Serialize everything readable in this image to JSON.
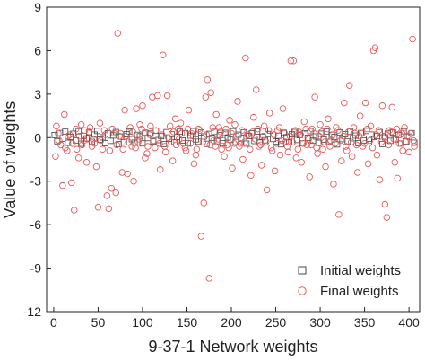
{
  "chart_data": {
    "type": "scatter",
    "xlabel": "9-37-1 Network weights",
    "ylabel": "Value of weights",
    "xlim": [
      -8,
      412
    ],
    "ylim": [
      -12,
      9
    ],
    "xticks": [
      0,
      50,
      100,
      150,
      200,
      250,
      300,
      350,
      400
    ],
    "yticks": [
      9,
      6,
      3,
      0,
      -3,
      -6,
      -9,
      -12
    ],
    "legend_position": "bottom-right",
    "grid": false,
    "series": [
      {
        "name": "Initial weights",
        "marker": "square",
        "color": "#444444",
        "x_start": 1,
        "x_step": 3,
        "values": [
          0.18,
          -0.25,
          0.32,
          -0.08,
          0.41,
          -0.36,
          0.05,
          0.27,
          -0.19,
          0.44,
          -0.42,
          0.12,
          -0.05,
          0.36,
          -0.29,
          0.21,
          0.46,
          -0.14,
          0.02,
          -0.38,
          0.3,
          -0.22,
          0.15,
          0.39,
          -0.45,
          0.07,
          -0.31,
          0.24,
          0.43,
          -0.11,
          -0.35,
          0.19,
          0.09,
          -0.4,
          0.34,
          -0.03,
          0.28,
          -0.26,
          0.47,
          -0.17,
          0.1,
          -0.44,
          0.38,
          -0.07,
          0.22,
          -0.33,
          0.04,
          0.41,
          -0.2,
          0.31,
          -0.37,
          0.14,
          0.45,
          -0.12,
          -0.28,
          0.35,
          0.08,
          -0.43,
          0.26,
          -0.02,
          0.4,
          -0.24,
          0.16,
          -0.39,
          0.33,
          0.01,
          -0.15,
          0.44,
          -0.3,
          0.2,
          -0.06,
          0.37,
          -0.41,
          0.11,
          0.29,
          -0.23,
          0.42,
          -0.34,
          0.06,
          -0.18,
          0.25,
          0.48,
          -0.09,
          -0.27,
          0.13,
          -0.46,
          0.34,
          0.03,
          -0.32,
          0.23,
          0.39,
          -0.16,
          0.17,
          -0.4,
          0.3,
          -0.01,
          0.45,
          -0.21,
          0.08,
          -0.36,
          0.27,
          -0.13,
          0.43,
          -0.29,
          0.19,
          0.05,
          -0.47,
          0.36,
          -0.1,
          0.24,
          -0.25,
          0.41,
          -0.04,
          0.14,
          -0.38,
          0.32,
          -0.19,
          0.46,
          -0.07,
          0.21,
          -0.33,
          0.1,
          0.38,
          -0.44,
          0.02,
          0.28,
          -0.22,
          0.35,
          -0.12,
          0.18,
          -0.41,
          0.44,
          -0.26,
          0.07,
          0.31,
          -0.35
        ]
      },
      {
        "name": "Final weights",
        "marker": "circle",
        "color": "#e85a5a",
        "points": [
          [
            2,
            -1.3
          ],
          [
            5,
            0.3
          ],
          [
            8,
            -0.5
          ],
          [
            10,
            -3.3
          ],
          [
            12,
            1.6
          ],
          [
            15,
            -0.9
          ],
          [
            18,
            0.2
          ],
          [
            20,
            -3.1
          ],
          [
            23,
            -5.0
          ],
          [
            25,
            0.6
          ],
          [
            28,
            -1.4
          ],
          [
            31,
            0.9
          ],
          [
            34,
            -0.2
          ],
          [
            37,
            -1.7
          ],
          [
            40,
            0.4
          ],
          [
            43,
            -0.6
          ],
          [
            45,
            -0.1
          ],
          [
            48,
            -2.0
          ],
          [
            50,
            -4.8
          ],
          [
            52,
            1.0
          ],
          [
            55,
            -0.8
          ],
          [
            57,
            0.5
          ],
          [
            60,
            -4.0
          ],
          [
            62,
            -4.9
          ],
          [
            65,
            -3.5
          ],
          [
            68,
            0.3
          ],
          [
            70,
            -3.8
          ],
          [
            72,
            7.2
          ],
          [
            74,
            0.1
          ],
          [
            77,
            -2.4
          ],
          [
            80,
            1.9
          ],
          [
            83,
            -2.5
          ],
          [
            86,
            0.7
          ],
          [
            88,
            -0.6
          ],
          [
            90,
            -3.0
          ],
          [
            93,
            2.0
          ],
          [
            95,
            -0.3
          ],
          [
            97,
            0.9
          ],
          [
            100,
            2.2
          ],
          [
            103,
            -1.4
          ],
          [
            105,
            -1.1
          ],
          [
            108,
            0.2
          ],
          [
            111,
            2.8
          ],
          [
            114,
            -0.7
          ],
          [
            117,
            2.9
          ],
          [
            120,
            -2.2
          ],
          [
            123,
            5.7
          ],
          [
            126,
            -1.0
          ],
          [
            128,
            2.9
          ],
          [
            131,
            0.8
          ],
          [
            134,
            -1.6
          ],
          [
            137,
            1.3
          ],
          [
            140,
            0.6
          ],
          [
            143,
            1.0
          ],
          [
            146,
            -0.4
          ],
          [
            149,
            -0.9
          ],
          [
            152,
            1.9
          ],
          [
            155,
            0.3
          ],
          [
            158,
            -1.8
          ],
          [
            160,
            -1.2
          ],
          [
            163,
            0.6
          ],
          [
            166,
            -6.8
          ],
          [
            169,
            -4.5
          ],
          [
            171,
            2.8
          ],
          [
            173,
            4.0
          ],
          [
            175,
            -9.7
          ],
          [
            177,
            3.1
          ],
          [
            180,
            -0.2
          ],
          [
            183,
            1.6
          ],
          [
            186,
            0.7
          ],
          [
            189,
            -0.8
          ],
          [
            192,
            -1.3
          ],
          [
            195,
            -0.5
          ],
          [
            198,
            1.2
          ],
          [
            201,
            -2.1
          ],
          [
            204,
            0.9
          ],
          [
            207,
            2.5
          ],
          [
            210,
            -0.4
          ],
          [
            213,
            -1.5
          ],
          [
            216,
            5.5
          ],
          [
            219,
            0.2
          ],
          [
            222,
            -2.6
          ],
          [
            225,
            1.4
          ],
          [
            228,
            3.3
          ],
          [
            231,
            -0.6
          ],
          [
            234,
            -1.9
          ],
          [
            237,
            0.8
          ],
          [
            240,
            -3.6
          ],
          [
            243,
            1.7
          ],
          [
            246,
            -0.9
          ],
          [
            249,
            -2.3
          ],
          [
            252,
            0.5
          ],
          [
            255,
            -1.2
          ],
          [
            258,
            2.0
          ],
          [
            261,
            -0.3
          ],
          [
            264,
            -1.0
          ],
          [
            267,
            5.3
          ],
          [
            270,
            5.3
          ],
          [
            273,
            -1.4
          ],
          [
            276,
            0.4
          ],
          [
            279,
            -1.7
          ],
          [
            282,
            1.1
          ],
          [
            285,
            -0.5
          ],
          [
            288,
            -2.7
          ],
          [
            291,
            0.6
          ],
          [
            294,
            2.8
          ],
          [
            297,
            -1.1
          ],
          [
            300,
            0.9
          ],
          [
            303,
            -0.8
          ],
          [
            306,
            -2.0
          ],
          [
            309,
            1.3
          ],
          [
            312,
            -0.2
          ],
          [
            315,
            -3.2
          ],
          [
            318,
            0.7
          ],
          [
            321,
            -5.3
          ],
          [
            324,
            -1.6
          ],
          [
            327,
            2.4
          ],
          [
            330,
            -0.9
          ],
          [
            333,
            3.6
          ],
          [
            336,
            -1.3
          ],
          [
            339,
            0.3
          ],
          [
            342,
            -2.4
          ],
          [
            345,
            1.5
          ],
          [
            348,
            -0.6
          ],
          [
            351,
            2.4
          ],
          [
            354,
            -1.8
          ],
          [
            357,
            0.8
          ],
          [
            360,
            6.0
          ],
          [
            362,
            6.2
          ],
          [
            364,
            -1.2
          ],
          [
            367,
            -2.9
          ],
          [
            370,
            2.2
          ],
          [
            373,
            -4.6
          ],
          [
            375,
            -5.5
          ],
          [
            378,
            0.5
          ],
          [
            381,
            2.1
          ],
          [
            384,
            -1.7
          ],
          [
            387,
            -2.8
          ],
          [
            390,
            0.2
          ],
          [
            393,
            -0.9
          ],
          [
            396,
            -0.3
          ],
          [
            400,
            -1.0
          ],
          [
            404,
            6.8
          ],
          [
            406,
            -0.6
          ],
          [
            3,
            0.8
          ],
          [
            6,
            -0.2
          ],
          [
            13,
            -0.7
          ],
          [
            16,
            0.1
          ],
          [
            21,
            -0.4
          ],
          [
            26,
            -0.8
          ],
          [
            29,
            0.1
          ],
          [
            32,
            -0.5
          ],
          [
            35,
            0.5
          ],
          [
            38,
            -0.1
          ],
          [
            41,
            0.7
          ],
          [
            46,
            -0.4
          ],
          [
            53,
            -0.2
          ],
          [
            58,
            0.2
          ],
          [
            63,
            -0.9
          ],
          [
            66,
            0.6
          ],
          [
            71,
            -0.5
          ],
          [
            75,
            0.3
          ],
          [
            78,
            -0.8
          ],
          [
            81,
            0.1
          ],
          [
            84,
            -0.3
          ],
          [
            89,
            0.4
          ],
          [
            92,
            -0.7
          ],
          [
            96,
            -0.1
          ],
          [
            99,
            0.6
          ],
          [
            102,
            0.3
          ],
          [
            106,
            -0.6
          ],
          [
            109,
            0.8
          ],
          [
            112,
            -0.2
          ],
          [
            115,
            0.5
          ],
          [
            119,
            -0.4
          ],
          [
            122,
            0.2
          ],
          [
            125,
            -0.6
          ],
          [
            129,
            0.0
          ],
          [
            132,
            -0.3
          ],
          [
            135,
            0.4
          ],
          [
            138,
            -0.5
          ],
          [
            141,
            -0.1
          ],
          [
            144,
            0.3
          ],
          [
            148,
            -0.7
          ],
          [
            151,
            0.6
          ],
          [
            154,
            -0.4
          ],
          [
            157,
            0.1
          ],
          [
            161,
            -0.8
          ],
          [
            164,
            0.5
          ],
          [
            168,
            -0.3
          ],
          [
            172,
            0.2
          ],
          [
            176,
            -0.5
          ],
          [
            179,
            0.7
          ],
          [
            182,
            -0.6
          ],
          [
            185,
            -0.1
          ],
          [
            188,
            0.4
          ],
          [
            191,
            -0.2
          ],
          [
            194,
            0.6
          ],
          [
            197,
            -0.7
          ],
          [
            200,
            0.3
          ],
          [
            203,
            -0.4
          ],
          [
            206,
            0.1
          ],
          [
            209,
            -0.6
          ],
          [
            212,
            0.5
          ],
          [
            215,
            -0.3
          ],
          [
            218,
            0.2
          ],
          [
            221,
            -0.8
          ],
          [
            224,
            0.4
          ],
          [
            227,
            -0.1
          ],
          [
            230,
            0.6
          ],
          [
            233,
            -0.5
          ],
          [
            236,
            0.1
          ],
          [
            239,
            -0.3
          ],
          [
            242,
            0.5
          ],
          [
            245,
            -0.7
          ],
          [
            248,
            0.2
          ],
          [
            251,
            -0.4
          ],
          [
            254,
            0.7
          ],
          [
            257,
            -0.2
          ],
          [
            260,
            0.3
          ],
          [
            263,
            -0.6
          ],
          [
            266,
            0.1
          ],
          [
            269,
            -0.3
          ],
          [
            272,
            0.5
          ],
          [
            275,
            -0.8
          ],
          [
            278,
            0.2
          ],
          [
            281,
            -0.4
          ],
          [
            284,
            0.6
          ],
          [
            287,
            -0.1
          ],
          [
            290,
            -0.5
          ],
          [
            293,
            0.3
          ],
          [
            296,
            -0.7
          ],
          [
            299,
            0.1
          ],
          [
            302,
            0.4
          ],
          [
            305,
            -0.3
          ],
          [
            308,
            0.6
          ],
          [
            311,
            -0.6
          ],
          [
            314,
            0.2
          ],
          [
            317,
            -0.4
          ],
          [
            320,
            0.5
          ],
          [
            323,
            -0.2
          ],
          [
            326,
            0.1
          ],
          [
            329,
            -0.6
          ],
          [
            332,
            0.4
          ],
          [
            335,
            -0.3
          ],
          [
            338,
            0.7
          ],
          [
            341,
            -0.5
          ],
          [
            344,
            0.1
          ],
          [
            347,
            0.3
          ],
          [
            350,
            -0.4
          ],
          [
            353,
            0.6
          ],
          [
            356,
            -0.2
          ],
          [
            359,
            -0.7
          ],
          [
            363,
            0.2
          ],
          [
            366,
            0.5
          ],
          [
            369,
            -0.3
          ],
          [
            372,
            0.1
          ],
          [
            377,
            -0.5
          ],
          [
            380,
            0.4
          ],
          [
            383,
            -0.1
          ],
          [
            386,
            0.6
          ],
          [
            389,
            -0.4
          ],
          [
            392,
            0.3
          ],
          [
            395,
            0.7
          ],
          [
            398,
            0.1
          ],
          [
            402,
            0.3
          ],
          [
            405,
            -0.2
          ]
        ]
      }
    ]
  }
}
